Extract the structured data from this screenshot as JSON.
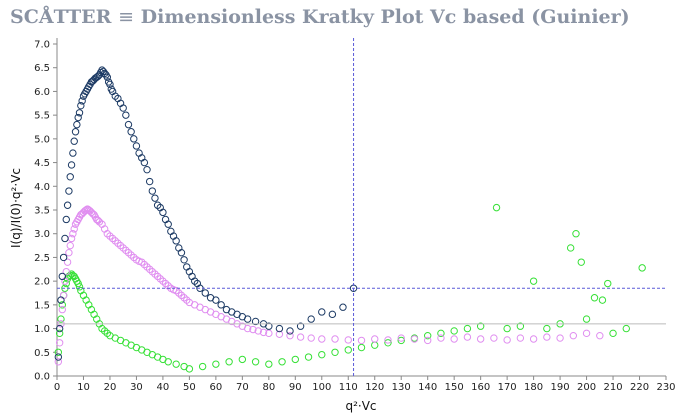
{
  "app": {
    "title_prefix": "SCÅTTER",
    "title_icon": "menu-lines-icon",
    "title_separator": "≡",
    "title": "Dimensionless Kratky Plot Vc based (Guinier)"
  },
  "colors": {
    "series_navy": "#1c3a64",
    "series_violet": "#e08ef0",
    "series_green": "#36e036",
    "crosshair": "#5a5ad8",
    "reference_line": "#bbbbbb",
    "axis": "#888888"
  },
  "chart_data": {
    "type": "scatter",
    "xlabel": "q²·Vc",
    "ylabel": "I(q)/I(0)·q²·Vc",
    "xlim": [
      0,
      230
    ],
    "ylim": [
      0,
      7.0
    ],
    "x_ticks": [
      0,
      10,
      20,
      30,
      40,
      50,
      60,
      70,
      80,
      90,
      100,
      110,
      120,
      130,
      140,
      150,
      160,
      170,
      180,
      190,
      200,
      210,
      220,
      230
    ],
    "y_ticks": [
      "0.0",
      "0.5",
      "1.0",
      "1.5",
      "2.0",
      "2.5",
      "3.0",
      "3.5",
      "4.0",
      "4.5",
      "5.0",
      "5.5",
      "6.0",
      "6.5",
      "7.0"
    ],
    "reference_line_y": 1.1,
    "crosshair": {
      "x": 112,
      "y": 1.85
    },
    "grid": false,
    "legend": "none",
    "series": [
      {
        "color": "#1c3a64",
        "points": [
          [
            0.5,
            0.4
          ],
          [
            1.0,
            1.0
          ],
          [
            1.5,
            1.6
          ],
          [
            2.0,
            2.1
          ],
          [
            2.5,
            2.5
          ],
          [
            3.0,
            2.9
          ],
          [
            3.5,
            3.3
          ],
          [
            4.0,
            3.6
          ],
          [
            4.5,
            3.9
          ],
          [
            5.0,
            4.2
          ],
          [
            5.5,
            4.45
          ],
          [
            6.0,
            4.7
          ],
          [
            6.5,
            4.95
          ],
          [
            7.0,
            5.15
          ],
          [
            7.5,
            5.3
          ],
          [
            8.0,
            5.45
          ],
          [
            8.5,
            5.55
          ],
          [
            9.0,
            5.7
          ],
          [
            9.5,
            5.8
          ],
          [
            10.0,
            5.9
          ],
          [
            10.5,
            5.95
          ],
          [
            11.0,
            6.0
          ],
          [
            11.5,
            6.05
          ],
          [
            12.0,
            6.1
          ],
          [
            12.5,
            6.15
          ],
          [
            13.0,
            6.2
          ],
          [
            13.5,
            6.22
          ],
          [
            14.0,
            6.25
          ],
          [
            14.5,
            6.28
          ],
          [
            15.0,
            6.3
          ],
          [
            15.5,
            6.32
          ],
          [
            16.0,
            6.35
          ],
          [
            16.5,
            6.4
          ],
          [
            17.0,
            6.45
          ],
          [
            17.5,
            6.42
          ],
          [
            18.0,
            6.38
          ],
          [
            18.5,
            6.35
          ],
          [
            19.0,
            6.3
          ],
          [
            19.5,
            6.2
          ],
          [
            20.0,
            6.15
          ],
          [
            20.5,
            6.05
          ],
          [
            21.0,
            6.0
          ],
          [
            22.0,
            5.9
          ],
          [
            23.0,
            5.85
          ],
          [
            24.0,
            5.75
          ],
          [
            25.0,
            5.65
          ],
          [
            26.0,
            5.5
          ],
          [
            27.0,
            5.3
          ],
          [
            28.0,
            5.15
          ],
          [
            29.0,
            5.0
          ],
          [
            30.0,
            4.85
          ],
          [
            31.0,
            4.7
          ],
          [
            32.0,
            4.6
          ],
          [
            33.0,
            4.5
          ],
          [
            34.0,
            4.35
          ],
          [
            35.0,
            4.1
          ],
          [
            36.0,
            3.9
          ],
          [
            37.0,
            3.75
          ],
          [
            38.0,
            3.6
          ],
          [
            39.0,
            3.55
          ],
          [
            40.0,
            3.45
          ],
          [
            41.0,
            3.3
          ],
          [
            42.0,
            3.2
          ],
          [
            43.0,
            3.05
          ],
          [
            44.0,
            2.95
          ],
          [
            45.0,
            2.85
          ],
          [
            46.0,
            2.7
          ],
          [
            47.0,
            2.6
          ],
          [
            48.0,
            2.45
          ],
          [
            49.0,
            2.3
          ],
          [
            50.0,
            2.2
          ],
          [
            51.0,
            2.1
          ],
          [
            52.0,
            2.0
          ],
          [
            53.0,
            1.95
          ],
          [
            54.0,
            1.85
          ],
          [
            56.0,
            1.75
          ],
          [
            58.0,
            1.65
          ],
          [
            60.0,
            1.6
          ],
          [
            62.0,
            1.5
          ],
          [
            64.0,
            1.4
          ],
          [
            66.0,
            1.35
          ],
          [
            68.0,
            1.3
          ],
          [
            70.0,
            1.25
          ],
          [
            72.0,
            1.2
          ],
          [
            75.0,
            1.15
          ],
          [
            78.0,
            1.1
          ],
          [
            80.0,
            1.05
          ],
          [
            84.0,
            1.0
          ],
          [
            88.0,
            0.95
          ],
          [
            92.0,
            1.05
          ],
          [
            96.0,
            1.2
          ],
          [
            100.0,
            1.35
          ],
          [
            104.0,
            1.3
          ],
          [
            108.0,
            1.45
          ],
          [
            112.0,
            1.85
          ]
        ]
      },
      {
        "color": "#e08ef0",
        "points": [
          [
            0.5,
            0.3
          ],
          [
            1.0,
            0.7
          ],
          [
            1.5,
            1.1
          ],
          [
            2.0,
            1.4
          ],
          [
            2.5,
            1.7
          ],
          [
            3.0,
            2.0
          ],
          [
            3.5,
            2.2
          ],
          [
            4.0,
            2.4
          ],
          [
            4.5,
            2.6
          ],
          [
            5.0,
            2.75
          ],
          [
            5.5,
            2.9
          ],
          [
            6.0,
            3.0
          ],
          [
            6.5,
            3.1
          ],
          [
            7.0,
            3.2
          ],
          [
            7.5,
            3.25
          ],
          [
            8.0,
            3.3
          ],
          [
            8.5,
            3.35
          ],
          [
            9.0,
            3.4
          ],
          [
            9.5,
            3.42
          ],
          [
            10.0,
            3.45
          ],
          [
            10.5,
            3.48
          ],
          [
            11.0,
            3.5
          ],
          [
            11.5,
            3.52
          ],
          [
            12.0,
            3.5
          ],
          [
            12.5,
            3.48
          ],
          [
            13.0,
            3.45
          ],
          [
            13.5,
            3.42
          ],
          [
            14.0,
            3.4
          ],
          [
            14.5,
            3.35
          ],
          [
            15.0,
            3.3
          ],
          [
            15.5,
            3.28
          ],
          [
            16.0,
            3.25
          ],
          [
            17.0,
            3.2
          ],
          [
            18.0,
            3.1
          ],
          [
            19.0,
            3.0
          ],
          [
            20.0,
            2.95
          ],
          [
            21.0,
            2.9
          ],
          [
            22.0,
            2.85
          ],
          [
            23.0,
            2.8
          ],
          [
            24.0,
            2.75
          ],
          [
            25.0,
            2.7
          ],
          [
            26.0,
            2.65
          ],
          [
            27.0,
            2.6
          ],
          [
            28.0,
            2.55
          ],
          [
            29.0,
            2.5
          ],
          [
            30.0,
            2.45
          ],
          [
            31.0,
            2.42
          ],
          [
            32.0,
            2.4
          ],
          [
            33.0,
            2.35
          ],
          [
            34.0,
            2.3
          ],
          [
            35.0,
            2.25
          ],
          [
            36.0,
            2.2
          ],
          [
            37.0,
            2.15
          ],
          [
            38.0,
            2.1
          ],
          [
            39.0,
            2.05
          ],
          [
            40.0,
            2.0
          ],
          [
            41.0,
            1.95
          ],
          [
            42.0,
            1.9
          ],
          [
            43.0,
            1.85
          ],
          [
            44.0,
            1.82
          ],
          [
            45.0,
            1.8
          ],
          [
            46.0,
            1.75
          ],
          [
            47.0,
            1.7
          ],
          [
            48.0,
            1.65
          ],
          [
            49.0,
            1.6
          ],
          [
            50.0,
            1.55
          ],
          [
            52.0,
            1.5
          ],
          [
            54.0,
            1.45
          ],
          [
            56.0,
            1.4
          ],
          [
            58.0,
            1.35
          ],
          [
            60.0,
            1.3
          ],
          [
            62.0,
            1.25
          ],
          [
            64.0,
            1.2
          ],
          [
            66.0,
            1.15
          ],
          [
            68.0,
            1.1
          ],
          [
            70.0,
            1.05
          ],
          [
            72.0,
            1.0
          ],
          [
            74.0,
            0.98
          ],
          [
            76.0,
            0.95
          ],
          [
            78.0,
            0.92
          ],
          [
            80.0,
            0.9
          ],
          [
            84.0,
            0.88
          ],
          [
            88.0,
            0.85
          ],
          [
            92.0,
            0.82
          ],
          [
            96.0,
            0.8
          ],
          [
            100.0,
            0.78
          ],
          [
            105.0,
            0.78
          ],
          [
            110.0,
            0.76
          ],
          [
            115.0,
            0.75
          ],
          [
            120.0,
            0.78
          ],
          [
            125.0,
            0.76
          ],
          [
            130.0,
            0.8
          ],
          [
            135.0,
            0.78
          ],
          [
            140.0,
            0.75
          ],
          [
            145.0,
            0.8
          ],
          [
            150.0,
            0.78
          ],
          [
            155.0,
            0.82
          ],
          [
            160.0,
            0.78
          ],
          [
            165.0,
            0.8
          ],
          [
            170.0,
            0.76
          ],
          [
            175.0,
            0.8
          ],
          [
            180.0,
            0.78
          ],
          [
            185.0,
            0.82
          ],
          [
            190.0,
            0.8
          ],
          [
            195.0,
            0.85
          ],
          [
            200.0,
            0.9
          ],
          [
            205.0,
            0.85
          ]
        ]
      },
      {
        "color": "#36e036",
        "points": [
          [
            0.5,
            0.5
          ],
          [
            1.0,
            0.9
          ],
          [
            1.5,
            1.2
          ],
          [
            2.0,
            1.5
          ],
          [
            2.5,
            1.7
          ],
          [
            3.0,
            1.85
          ],
          [
            3.5,
            1.95
          ],
          [
            4.0,
            2.05
          ],
          [
            4.5,
            2.1
          ],
          [
            5.0,
            2.12
          ],
          [
            5.5,
            2.15
          ],
          [
            6.0,
            2.12
          ],
          [
            6.5,
            2.1
          ],
          [
            7.0,
            2.05
          ],
          [
            7.5,
            2.0
          ],
          [
            8.0,
            1.95
          ],
          [
            8.5,
            1.88
          ],
          [
            9.0,
            1.8
          ],
          [
            10.0,
            1.7
          ],
          [
            11.0,
            1.6
          ],
          [
            12.0,
            1.5
          ],
          [
            13.0,
            1.4
          ],
          [
            14.0,
            1.3
          ],
          [
            15.0,
            1.2
          ],
          [
            16.0,
            1.1
          ],
          [
            17.0,
            1.0
          ],
          [
            18.0,
            0.95
          ],
          [
            19.0,
            0.9
          ],
          [
            20.0,
            0.85
          ],
          [
            22.0,
            0.8
          ],
          [
            24.0,
            0.75
          ],
          [
            26.0,
            0.7
          ],
          [
            28.0,
            0.65
          ],
          [
            30.0,
            0.6
          ],
          [
            32.0,
            0.55
          ],
          [
            34.0,
            0.5
          ],
          [
            36.0,
            0.45
          ],
          [
            38.0,
            0.4
          ],
          [
            40.0,
            0.35
          ],
          [
            42.0,
            0.3
          ],
          [
            45.0,
            0.25
          ],
          [
            48.0,
            0.2
          ],
          [
            50.0,
            0.15
          ],
          [
            55.0,
            0.2
          ],
          [
            60.0,
            0.25
          ],
          [
            65.0,
            0.3
          ],
          [
            70.0,
            0.35
          ],
          [
            75.0,
            0.3
          ],
          [
            80.0,
            0.25
          ],
          [
            85.0,
            0.3
          ],
          [
            90.0,
            0.35
          ],
          [
            95.0,
            0.4
          ],
          [
            100.0,
            0.45
          ],
          [
            105.0,
            0.5
          ],
          [
            110.0,
            0.55
          ],
          [
            115.0,
            0.6
          ],
          [
            120.0,
            0.65
          ],
          [
            125.0,
            0.7
          ],
          [
            130.0,
            0.75
          ],
          [
            135.0,
            0.8
          ],
          [
            140.0,
            0.85
          ],
          [
            145.0,
            0.9
          ],
          [
            150.0,
            0.95
          ],
          [
            155.0,
            1.0
          ],
          [
            160.0,
            1.05
          ],
          [
            166.0,
            3.55
          ],
          [
            170.0,
            1.0
          ],
          [
            175.0,
            1.05
          ],
          [
            180.0,
            2.0
          ],
          [
            185.0,
            1.0
          ],
          [
            190.0,
            1.1
          ],
          [
            194.0,
            2.7
          ],
          [
            196.0,
            3.0
          ],
          [
            198.0,
            2.4
          ],
          [
            200.0,
            1.2
          ],
          [
            203.0,
            1.65
          ],
          [
            206.0,
            1.6
          ],
          [
            208.0,
            1.95
          ],
          [
            210.0,
            0.9
          ],
          [
            215.0,
            1.0
          ],
          [
            221.0,
            2.28
          ]
        ]
      }
    ]
  }
}
